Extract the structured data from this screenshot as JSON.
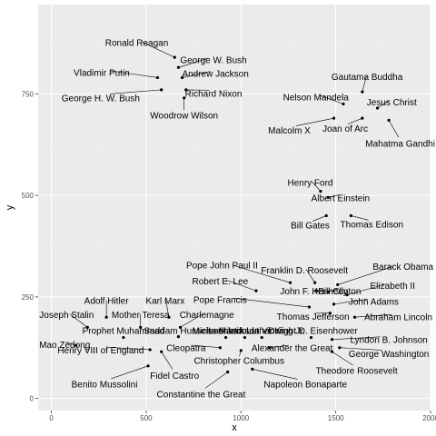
{
  "chart_data": {
    "type": "scatter",
    "xlabel": "x",
    "ylabel": "y",
    "xlim": [
      -70,
      2000
    ],
    "ylim": [
      -30,
      970
    ],
    "x_ticks": [
      0,
      500,
      1000,
      1500,
      2000
    ],
    "y_ticks": [
      0,
      250,
      500,
      750
    ],
    "grid": true,
    "colors": {
      "panel": "#ebebeb",
      "grid_major": "#ffffff",
      "grid_minor": "#f5f5f5",
      "point": "#000000",
      "text": "#000000",
      "tick_text": "#4d4d4d"
    },
    "points": [
      {
        "label": "Ronald Reagan",
        "x": 650,
        "y": 840,
        "lx": 450,
        "ly": 876
      },
      {
        "label": "George W. Bush",
        "x": 670,
        "y": 815,
        "lx": 855,
        "ly": 834
      },
      {
        "label": "Vladimir Putin",
        "x": 560,
        "y": 790,
        "lx": 265,
        "ly": 802
      },
      {
        "label": "Andrew Jackson",
        "x": 690,
        "y": 790,
        "lx": 865,
        "ly": 800
      },
      {
        "label": "Richard Nixon",
        "x": 710,
        "y": 760,
        "lx": 855,
        "ly": 751
      },
      {
        "label": "George H. W. Bush",
        "x": 580,
        "y": 760,
        "lx": 260,
        "ly": 740
      },
      {
        "label": "Woodrow Wilson",
        "x": 700,
        "y": 740,
        "lx": 700,
        "ly": 697
      },
      {
        "label": "Gautama Buddha",
        "x": 1640,
        "y": 755,
        "lx": 1665,
        "ly": 792
      },
      {
        "label": "Nelson Mandela",
        "x": 1540,
        "y": 725,
        "lx": 1395,
        "ly": 742
      },
      {
        "label": "Jesus Christ",
        "x": 1720,
        "y": 715,
        "lx": 1795,
        "ly": 730
      },
      {
        "label": "Joan of Arc",
        "x": 1640,
        "y": 690,
        "lx": 1550,
        "ly": 665
      },
      {
        "label": "Malcolm X",
        "x": 1490,
        "y": 690,
        "lx": 1255,
        "ly": 660
      },
      {
        "label": "Mahatma Gandhi",
        "x": 1780,
        "y": 685,
        "lx": 1840,
        "ly": 628
      },
      {
        "label": "Henry Ford",
        "x": 1420,
        "y": 510,
        "lx": 1365,
        "ly": 531
      },
      {
        "label": "Albert Einstein",
        "x": 1460,
        "y": 495,
        "lx": 1525,
        "ly": 494
      },
      {
        "label": "Bill Gates",
        "x": 1450,
        "y": 450,
        "lx": 1365,
        "ly": 426
      },
      {
        "label": "Thomas Edison",
        "x": 1580,
        "y": 450,
        "lx": 1690,
        "ly": 429
      },
      {
        "label": "Pope John Paul II",
        "x": 1260,
        "y": 285,
        "lx": 900,
        "ly": 328
      },
      {
        "label": "Franklin D. Roosevelt",
        "x": 1390,
        "y": 285,
        "lx": 1335,
        "ly": 316
      },
      {
        "label": "Barack Obama",
        "x": 1510,
        "y": 280,
        "lx": 1855,
        "ly": 325
      },
      {
        "label": "Robert E. Lee",
        "x": 1080,
        "y": 265,
        "lx": 890,
        "ly": 289
      },
      {
        "label": "John F. Kennedy",
        "x": 1400,
        "y": 265,
        "lx": 1385,
        "ly": 264
      },
      {
        "label": "Bill Clinton",
        "x": 1460,
        "y": 262,
        "lx": 1520,
        "ly": 264
      },
      {
        "label": "Elizabeth II",
        "x": 1560,
        "y": 255,
        "lx": 1800,
        "ly": 278
      },
      {
        "label": "Pope Francis",
        "x": 1360,
        "y": 225,
        "lx": 890,
        "ly": 243
      },
      {
        "label": "John Adams",
        "x": 1490,
        "y": 232,
        "lx": 1700,
        "ly": 239
      },
      {
        "label": "Thomas Jefferson",
        "x": 1470,
        "y": 210,
        "lx": 1380,
        "ly": 202
      },
      {
        "label": "Abraham Lincoln",
        "x": 1600,
        "y": 200,
        "lx": 1830,
        "ly": 200
      },
      {
        "label": "Adolf Hitler",
        "x": 290,
        "y": 200,
        "lx": 290,
        "ly": 241
      },
      {
        "label": "Karl Marx",
        "x": 620,
        "y": 200,
        "lx": 600,
        "ly": 241
      },
      {
        "label": "Joseph Stalin",
        "x": 190,
        "y": 175,
        "lx": 80,
        "ly": 206
      },
      {
        "label": "Mother Teresa",
        "x": 470,
        "y": 175,
        "lx": 470,
        "ly": 206
      },
      {
        "label": "Charlemagne",
        "x": 680,
        "y": 175,
        "lx": 820,
        "ly": 206
      },
      {
        "label": "Prophet Muhammad",
        "x": 380,
        "y": 150,
        "lx": 380,
        "ly": 167
      },
      {
        "label": "Saddam Hussein",
        "x": 670,
        "y": 152,
        "lx": 670,
        "ly": 167
      },
      {
        "label": "Michael Jackson",
        "x": 920,
        "y": 150,
        "lx": 920,
        "ly": 167
      },
      {
        "label": "Leonardo da Vinci",
        "x": 1020,
        "y": 150,
        "lx": 1020,
        "ly": 167
      },
      {
        "label": "Martin Luther King Jr.",
        "x": 1110,
        "y": 150,
        "lx": 1110,
        "ly": 167
      },
      {
        "label": "Dwight D. Eisenhower",
        "x": 1370,
        "y": 150,
        "lx": 1380,
        "ly": 167
      },
      {
        "label": "Lyndon B. Johnson",
        "x": 1480,
        "y": 145,
        "lx": 1780,
        "ly": 145
      },
      {
        "label": "Mao Zedong",
        "x": 130,
        "y": 130,
        "lx": 70,
        "ly": 132
      },
      {
        "label": "Henry VIII of England",
        "x": 520,
        "y": 120,
        "lx": 260,
        "ly": 119
      },
      {
        "label": "Cleopatra",
        "x": 890,
        "y": 125,
        "lx": 710,
        "ly": 124
      },
      {
        "label": "Alexander the Great",
        "x": 1150,
        "y": 125,
        "lx": 1270,
        "ly": 124
      },
      {
        "label": "George Washington",
        "x": 1520,
        "y": 125,
        "lx": 1780,
        "ly": 110
      },
      {
        "label": "Fidel Castro",
        "x": 580,
        "y": 115,
        "lx": 650,
        "ly": 56
      },
      {
        "label": "Christopher Columbus",
        "x": 1000,
        "y": 118,
        "lx": 990,
        "ly": 93
      },
      {
        "label": "Theodore Roosevelt",
        "x": 1480,
        "y": 115,
        "lx": 1610,
        "ly": 68
      },
      {
        "label": "Benito Mussolini",
        "x": 510,
        "y": 80,
        "lx": 280,
        "ly": 35
      },
      {
        "label": "Napoleon Bonaparte",
        "x": 1060,
        "y": 72,
        "lx": 1340,
        "ly": 35
      },
      {
        "label": "Constantine the Great",
        "x": 930,
        "y": 65,
        "lx": 790,
        "ly": 10
      }
    ]
  }
}
